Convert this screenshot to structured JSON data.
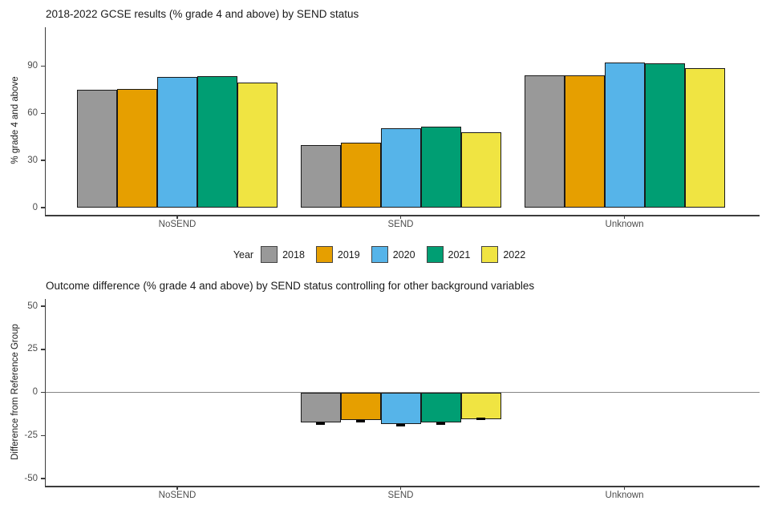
{
  "palette": {
    "bar_outline": "#1a1a1a",
    "axis_line": "#3c3c3c",
    "axis_text": "#4d4d4d",
    "title_text": "#1a1a1a",
    "zero_line": "#858585",
    "background": "#ffffff"
  },
  "legend": {
    "title": "Year",
    "entries": [
      {
        "label": "2018",
        "color": "#999999"
      },
      {
        "label": "2019",
        "color": "#E69F00"
      },
      {
        "label": "2020",
        "color": "#56B4E9"
      },
      {
        "label": "2021",
        "color": "#009E73"
      },
      {
        "label": "2022",
        "color": "#F0E442"
      }
    ]
  },
  "chart_data": [
    {
      "type": "bar",
      "title": "2018-2022 GCSE results (% grade 4 and above) by SEND status",
      "xlabel": "",
      "ylabel": "% grade 4 and above",
      "categories": [
        "NoSEND",
        "SEND",
        "Unknown"
      ],
      "series": [
        {
          "name": "2018",
          "color": "#999999",
          "values": [
            75.2,
            40.0,
            84.4
          ]
        },
        {
          "name": "2019",
          "color": "#E69F00",
          "values": [
            75.4,
            41.2,
            84.3
          ]
        },
        {
          "name": "2020",
          "color": "#56B4E9",
          "values": [
            83.2,
            50.6,
            92.1
          ]
        },
        {
          "name": "2021",
          "color": "#009E73",
          "values": [
            83.7,
            51.6,
            92.0
          ]
        },
        {
          "name": "2022",
          "color": "#F0E442",
          "values": [
            79.8,
            48.0,
            89.0
          ]
        }
      ],
      "yticks": [
        0,
        30,
        60,
        90
      ],
      "ylim": [
        0,
        114
      ],
      "grid": false,
      "legend_position": "bottom",
      "zero_line": false
    },
    {
      "type": "bar",
      "title": "Outcome difference (% grade 4 and above) by SEND status controlling for other background variables",
      "xlabel": "",
      "ylabel": "Difference from Reference Group",
      "categories": [
        "NoSEND",
        "SEND",
        "Unknown"
      ],
      "series": [
        {
          "name": "2018",
          "color": "#999999",
          "values": [
            null,
            -17.3,
            null
          ]
        },
        {
          "name": "2019",
          "color": "#E69F00",
          "values": [
            null,
            -16.2,
            null
          ]
        },
        {
          "name": "2020",
          "color": "#56B4E9",
          "values": [
            null,
            -18.5,
            null
          ]
        },
        {
          "name": "2021",
          "color": "#009E73",
          "values": [
            null,
            -17.3,
            null
          ]
        },
        {
          "name": "2022",
          "color": "#F0E442",
          "values": [
            null,
            -15.5,
            null
          ]
        }
      ],
      "ci_marks_category": "SEND",
      "ci_marks": [
        -18.0,
        -16.7,
        -19.3,
        -18.0,
        -15.5
      ],
      "yticks": [
        50,
        25,
        0,
        -25,
        -50
      ],
      "ylim": [
        -55,
        55
      ],
      "grid": false,
      "zero_line": true
    }
  ]
}
